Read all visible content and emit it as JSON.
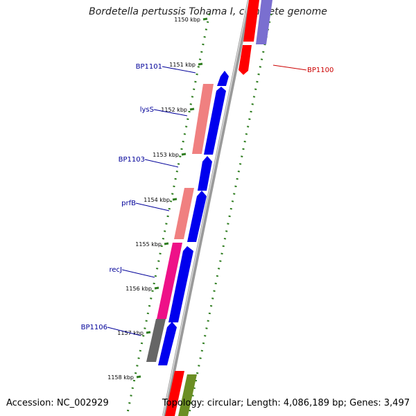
{
  "title": "Bordetella pertussis Tohama I, complete genome",
  "footer": {
    "accession": "Accession: NC_002929",
    "summary": "Topology: circular; Length: 4,086,189 bp; Genes: 3,497"
  },
  "ticks": [
    {
      "label": "1150 kbp",
      "fade": true
    },
    {
      "label": "1151 kbp"
    },
    {
      "label": "1152 kbp"
    },
    {
      "label": "1153 kbp"
    },
    {
      "label": "1154 kbp"
    },
    {
      "label": "1155 kbp"
    },
    {
      "label": "1156 kbp"
    },
    {
      "label": "1157 kbp"
    },
    {
      "label": "1158 kbp"
    }
  ],
  "gene_labels": [
    {
      "name": "BP1100",
      "color": "#cc0000"
    },
    {
      "name": "BP1101",
      "color": "#000099"
    },
    {
      "name": "lysS",
      "color": "#000099"
    },
    {
      "name": "BP1103",
      "color": "#000099"
    },
    {
      "name": "prfB",
      "color": "#000099"
    },
    {
      "name": "recJ",
      "color": "#000099"
    },
    {
      "name": "BP1106",
      "color": "#000099"
    }
  ],
  "colors": {
    "backbone": "#888888",
    "tick": "#2e7d1f",
    "cds": "#0000ee",
    "red": "#ff0000",
    "pink": "#f08080",
    "magenta": "#ee1188",
    "gray": "#666666",
    "purple": "#7a6fd0",
    "olive": "#6b8e23"
  }
}
